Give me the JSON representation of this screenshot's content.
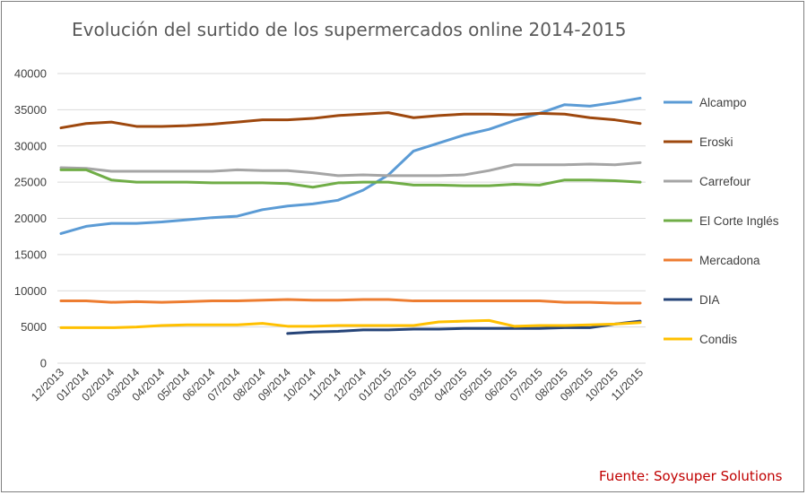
{
  "chart_data": {
    "type": "line",
    "title": "Evolución del surtido de los supermercados online 2014-2015",
    "xlabel": "",
    "ylabel": "",
    "ylim": [
      0,
      40000
    ],
    "yticks": [
      0,
      5000,
      10000,
      15000,
      20000,
      25000,
      30000,
      35000,
      40000
    ],
    "grid": true,
    "legend_position": "right",
    "source": "Fuente: Soysuper Solutions",
    "categories": [
      "12/2013",
      "01/2014",
      "02/2014",
      "03/2014",
      "04/2014",
      "05/2014",
      "06/2014",
      "07/2014",
      "08/2014",
      "09/2014",
      "10/2014",
      "11/2014",
      "12/2014",
      "01/2015",
      "02/2015",
      "03/2015",
      "04/2015",
      "05/2015",
      "06/2015",
      "07/2015",
      "08/2015",
      "09/2015",
      "10/2015",
      "11/2015"
    ],
    "series": [
      {
        "name": "Alcampo",
        "color": "#5b9bd5",
        "values": [
          17900,
          18900,
          19300,
          19300,
          19500,
          19800,
          20100,
          20300,
          21200,
          21700,
          22000,
          22500,
          23900,
          26000,
          29300,
          30400,
          31500,
          32300,
          33500,
          34500,
          35700,
          35500,
          36000,
          36600
        ]
      },
      {
        "name": "Eroski",
        "color": "#9e480e",
        "values": [
          32500,
          33100,
          33300,
          32700,
          32700,
          32800,
          33000,
          33300,
          33600,
          33600,
          33800,
          34200,
          34400,
          34600,
          33900,
          34200,
          34400,
          34400,
          34300,
          34500,
          34400,
          33900,
          33600,
          33100
        ]
      },
      {
        "name": "Carrefour",
        "color": "#a5a5a5",
        "values": [
          27000,
          26900,
          26500,
          26500,
          26500,
          26500,
          26500,
          26700,
          26600,
          26600,
          26300,
          25900,
          26000,
          25900,
          25900,
          25900,
          26000,
          26600,
          27400,
          27400,
          27400,
          27500,
          27400,
          27700
        ]
      },
      {
        "name": "El Corte Inglés",
        "color": "#70ad47",
        "values": [
          26700,
          26700,
          25300,
          25000,
          25000,
          25000,
          24900,
          24900,
          24900,
          24800,
          24300,
          24900,
          25000,
          25000,
          24600,
          24600,
          24500,
          24500,
          24700,
          24600,
          25300,
          25300,
          25200,
          25000
        ]
      },
      {
        "name": "Mercadona",
        "color": "#ed7d31",
        "values": [
          8600,
          8600,
          8400,
          8500,
          8400,
          8500,
          8600,
          8600,
          8700,
          8800,
          8700,
          8700,
          8800,
          8800,
          8600,
          8600,
          8600,
          8600,
          8600,
          8600,
          8400,
          8400,
          8300,
          8300
        ]
      },
      {
        "name": "DIA",
        "color": "#264478",
        "values": [
          null,
          null,
          null,
          null,
          null,
          null,
          null,
          null,
          null,
          4100,
          4300,
          4400,
          4600,
          4600,
          4700,
          4700,
          4800,
          4800,
          4800,
          4800,
          4900,
          4900,
          5400,
          5800
        ]
      },
      {
        "name": "Condis",
        "color": "#ffc000",
        "values": [
          4900,
          4900,
          4900,
          5000,
          5200,
          5300,
          5300,
          5300,
          5500,
          5100,
          5100,
          5200,
          5200,
          5200,
          5200,
          5700,
          5800,
          5900,
          5100,
          5200,
          5200,
          5300,
          5400,
          5600
        ]
      }
    ]
  }
}
